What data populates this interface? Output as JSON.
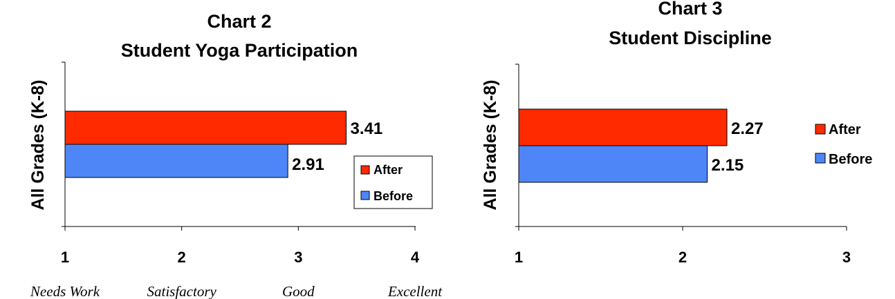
{
  "chart_data": [
    {
      "type": "bar",
      "orientation": "horizontal",
      "title_line1": "Chart 2",
      "title_line2": "Student Yoga Participation",
      "ylabel": "All Grades (K-8)",
      "categories": [
        "All Grades (K-8)"
      ],
      "series": [
        {
          "name": "After",
          "values": [
            3.41
          ],
          "color": "#ff2a00",
          "label": "3.41"
        },
        {
          "name": "Before",
          "values": [
            2.91
          ],
          "color": "#4f86f7",
          "label": "2.91"
        }
      ],
      "xlim": [
        1,
        4
      ],
      "xticks": [
        "1",
        "2",
        "3",
        "4"
      ],
      "scale_labels": [
        "Needs Work",
        "Satisfactory",
        "Good",
        "Excellent"
      ],
      "legend_position": "right",
      "grid": false
    },
    {
      "type": "bar",
      "orientation": "horizontal",
      "title_line1": "Chart 3",
      "title_line2": "Student Discipline",
      "ylabel": "All Grades (K-8)",
      "categories": [
        "All Grades (K-8)"
      ],
      "series": [
        {
          "name": "After",
          "values": [
            2.27
          ],
          "color": "#ff2a00",
          "label": "2.27"
        },
        {
          "name": "Before",
          "values": [
            2.15
          ],
          "color": "#4f86f7",
          "label": "2.15"
        }
      ],
      "xlim": [
        1,
        3
      ],
      "xticks": [
        "1",
        "2",
        "3"
      ],
      "legend_position": "right",
      "grid": false
    }
  ]
}
